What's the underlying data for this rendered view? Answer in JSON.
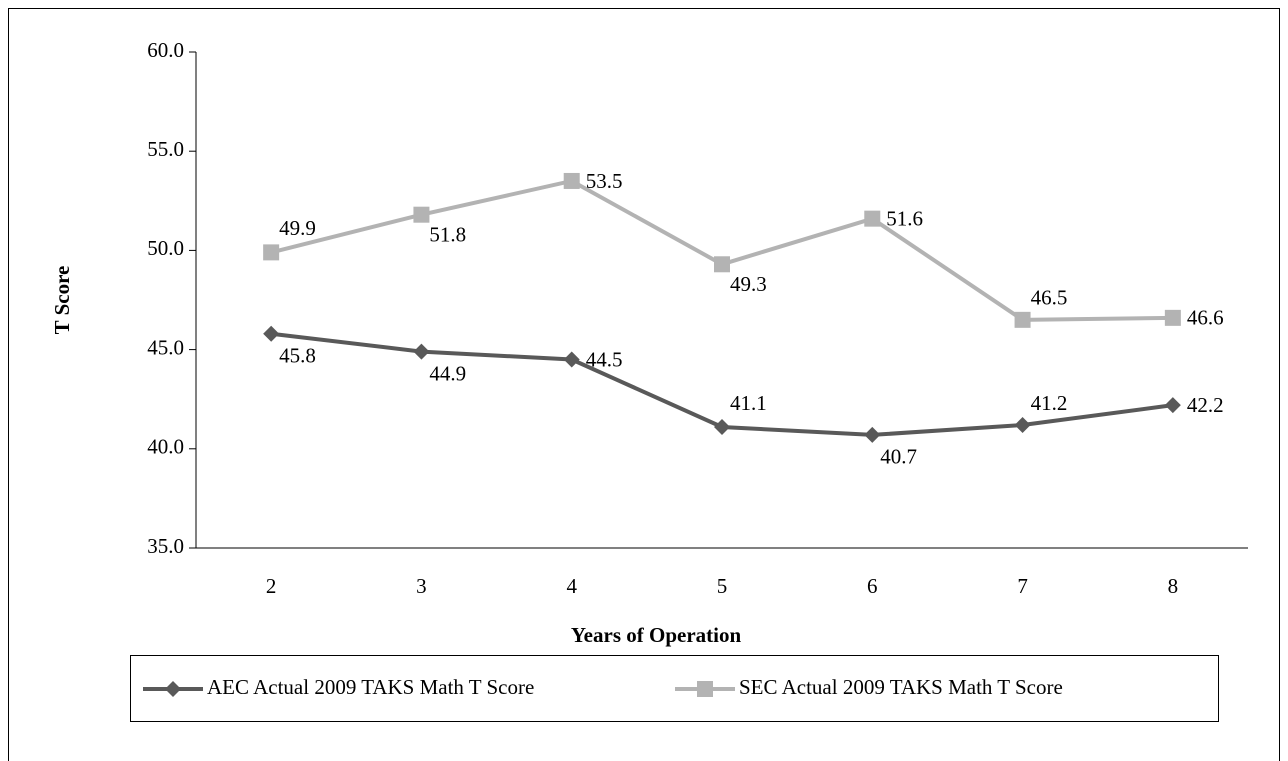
{
  "chart_data": {
    "type": "line",
    "y_label": "T Score",
    "x_label": "Years of Operation",
    "categories": [
      "2",
      "3",
      "4",
      "5",
      "6",
      "7",
      "8"
    ],
    "series": [
      {
        "name": "AEC Actual 2009 TAKS Math T Score",
        "color": "#595959",
        "marker": "diamond",
        "values": [
          45.8,
          44.9,
          44.5,
          41.1,
          40.7,
          41.2,
          42.2
        ]
      },
      {
        "name": "SEC Actual 2009 TAKS Math T Score",
        "color": "#b3b3b3",
        "marker": "square",
        "values": [
          49.9,
          51.8,
          53.5,
          49.3,
          51.6,
          46.5,
          46.6
        ]
      }
    ],
    "ylim": [
      35,
      60
    ],
    "yticks": [
      {
        "value": 35,
        "label": "35.0"
      },
      {
        "value": 40,
        "label": "40.0"
      },
      {
        "value": 45,
        "label": "45.0"
      },
      {
        "value": 50,
        "label": "50.0"
      },
      {
        "value": 55,
        "label": "55.0"
      },
      {
        "value": 60,
        "label": "60.0"
      }
    ],
    "legend": "bottom"
  }
}
